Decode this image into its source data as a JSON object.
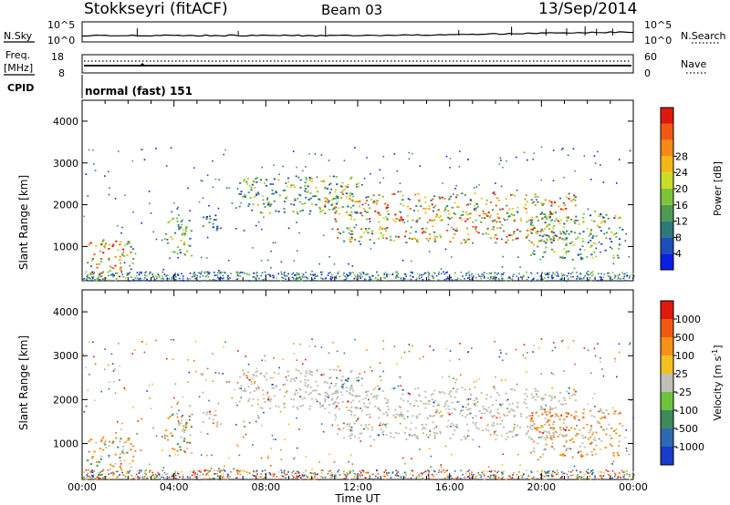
{
  "header": {
    "station": "Stokkseyri (fitACF)",
    "beam": "Beam 03",
    "date": "13/Sep/2014"
  },
  "side_labels": {
    "nsky": "N.Sky",
    "freq": "Freq.",
    "freq_unit": "[MHz]",
    "cpid": "CPID",
    "nsearch": "N.Search",
    "nave": "Nave"
  },
  "cpid_text": "normal (fast) 151",
  "noise_axis": {
    "left_top": "10^5",
    "left_bottom": "10^0",
    "right_top": "10^5",
    "right_bottom": "10^0"
  },
  "freq_axis": {
    "left_top": "18",
    "left_bottom": "8",
    "right_top": "60",
    "right_bottom": "0"
  },
  "chart_data": [
    {
      "type": "heatmap",
      "title": "",
      "xlabel": "Time UT",
      "ylabel": "Slant Range [km]",
      "xlim": [
        0,
        24
      ],
      "ylim": [
        180,
        4500
      ],
      "x_ticks": [
        "00:00",
        "04:00",
        "08:00",
        "12:00",
        "16:00",
        "20:00",
        "00:00"
      ],
      "y_ticks": [
        "1000",
        "2000",
        "3000",
        "4000"
      ],
      "colorbar": {
        "label": "Power [dB]",
        "ticks": [
          "4",
          "8",
          "12",
          "16",
          "20",
          "24",
          "28"
        ],
        "colors": [
          "#0a1ee6",
          "#1d4fb8",
          "#2e7a7a",
          "#4f9a55",
          "#7ec43a",
          "#c8dc2a",
          "#f2b81a",
          "#f58a18",
          "#f25a14",
          "#e0180e"
        ]
      },
      "scatter_bands": [
        {
          "x": [
            0.2,
            2.2
          ],
          "y": [
            250,
            1200
          ],
          "level": "high"
        },
        {
          "x": [
            3.6,
            4.8
          ],
          "y": [
            800,
            1700
          ],
          "level": "mid"
        },
        {
          "x": [
            5.0,
            6.0
          ],
          "y": [
            1400,
            1800
          ],
          "level": "low"
        },
        {
          "x": [
            6.8,
            12.0
          ],
          "y": [
            1800,
            2700
          ],
          "level": "mid"
        },
        {
          "x": [
            10.5,
            21.5
          ],
          "y": [
            1600,
            2300
          ],
          "level": "high"
        },
        {
          "x": [
            11.0,
            21.0
          ],
          "y": [
            1100,
            1500
          ],
          "level": "high"
        },
        {
          "x": [
            19.5,
            23.5
          ],
          "y": [
            700,
            1800
          ],
          "level": "mid"
        }
      ]
    },
    {
      "type": "heatmap",
      "title": "",
      "xlabel": "Time UT",
      "ylabel": "Slant Range [km]",
      "xlim": [
        0,
        24
      ],
      "ylim": [
        180,
        4500
      ],
      "x_ticks": [
        "00:00",
        "04:00",
        "08:00",
        "12:00",
        "16:00",
        "20:00",
        "00:00"
      ],
      "y_ticks": [
        "1000",
        "2000",
        "3000",
        "4000"
      ],
      "colorbar": {
        "label": "Velocity [m s",
        "label_sup": "-1",
        "label_close": "]",
        "ticks": [
          "1000",
          "500",
          "100",
          "25",
          "-25",
          "-100",
          "-500",
          "-1000"
        ],
        "colors": [
          "#1a3cc8",
          "#2e6ab0",
          "#3f8a5a",
          "#6ec23c",
          "#c0c0b8",
          "#f2c020",
          "#f59018",
          "#f05a14",
          "#e01a0e"
        ]
      }
    }
  ]
}
